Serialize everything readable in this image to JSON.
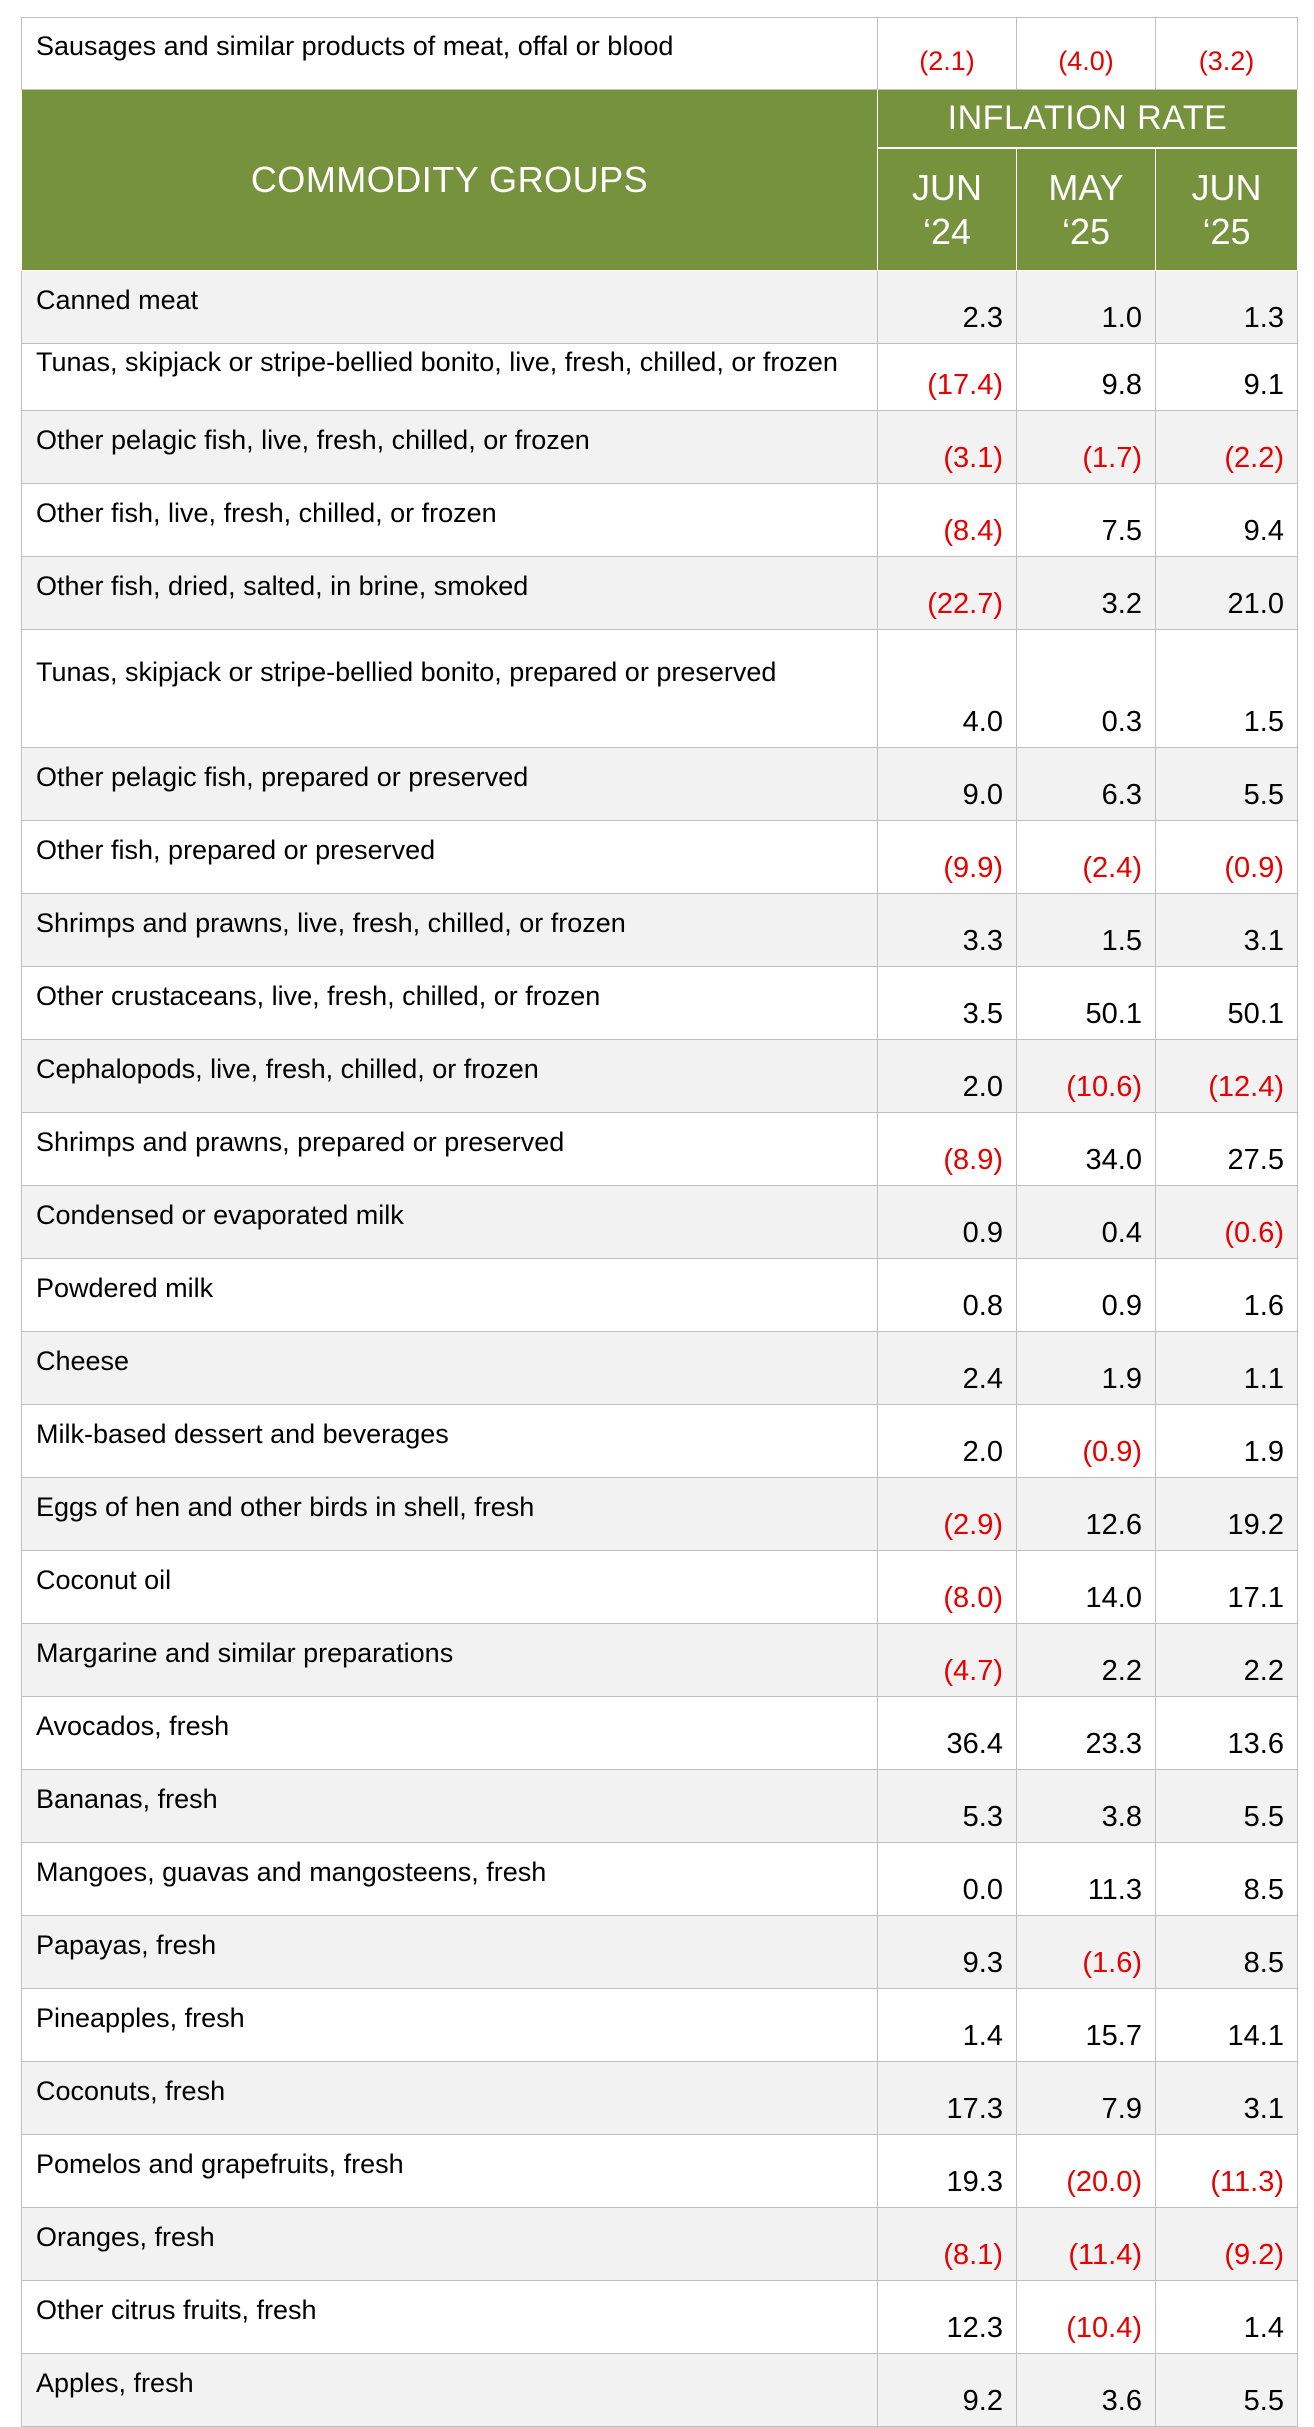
{
  "first_row": {
    "label": "Sausages and similar products of meat, offal or blood",
    "jun24": "(2.1)",
    "may25": "(4.0)",
    "jun25": "(3.2)"
  },
  "header": {
    "commodity_groups": "COMMODITY GROUPS",
    "inflation_rate": "INFLATION RATE",
    "periods": [
      {
        "line1": "JUN",
        "line2": "‘24"
      },
      {
        "line1": "MAY",
        "line2": "‘25"
      },
      {
        "line1": "JUN",
        "line2": "‘25"
      }
    ]
  },
  "rows": [
    {
      "label": "Canned meat",
      "jun24": "2.3",
      "may25": "1.0",
      "jun25": "1.3"
    },
    {
      "label": "Tunas, skipjack or stripe-bellied bonito, live, fresh, chilled, or frozen",
      "jun24": "(17.4)",
      "may25": "9.8",
      "jun25": "9.1"
    },
    {
      "label": "Other pelagic fish, live, fresh, chilled, or frozen",
      "jun24": "(3.1)",
      "may25": "(1.7)",
      "jun25": "(2.2)"
    },
    {
      "label": "Other fish, live, fresh, chilled, or frozen",
      "jun24": "(8.4)",
      "may25": "7.5",
      "jun25": "9.4"
    },
    {
      "label": "Other fish, dried, salted, in brine, smoked",
      "jun24": "(22.7)",
      "may25": "3.2",
      "jun25": "21.0"
    },
    {
      "label": "Tunas, skipjack or stripe-bellied bonito, prepared or preserved",
      "jun24": "4.0",
      "may25": "0.3",
      "jun25": "1.5"
    },
    {
      "label": "Other pelagic fish, prepared or preserved",
      "jun24": "9.0",
      "may25": "6.3",
      "jun25": "5.5"
    },
    {
      "label": "Other fish, prepared or preserved",
      "jun24": "(9.9)",
      "may25": "(2.4)",
      "jun25": "(0.9)"
    },
    {
      "label": "Shrimps and prawns, live, fresh, chilled, or frozen",
      "jun24": "3.3",
      "may25": "1.5",
      "jun25": "3.1"
    },
    {
      "label": "Other crustaceans, live, fresh, chilled, or frozen",
      "jun24": "3.5",
      "may25": "50.1",
      "jun25": "50.1"
    },
    {
      "label": "Cephalopods, live, fresh, chilled, or frozen",
      "jun24": "2.0",
      "may25": "(10.6)",
      "jun25": "(12.4)"
    },
    {
      "label": "Shrimps and prawns, prepared or preserved",
      "jun24": "(8.9)",
      "may25": "34.0",
      "jun25": "27.5"
    },
    {
      "label": "Condensed or evaporated milk",
      "jun24": "0.9",
      "may25": "0.4",
      "jun25": "(0.6)"
    },
    {
      "label": "Powdered milk",
      "jun24": "0.8",
      "may25": "0.9",
      "jun25": "1.6"
    },
    {
      "label": "Cheese",
      "jun24": "2.4",
      "may25": "1.9",
      "jun25": "1.1"
    },
    {
      "label": "Milk-based dessert and beverages",
      "jun24": "2.0",
      "may25": "(0.9)",
      "jun25": "1.9"
    },
    {
      "label": "Eggs of hen and other birds in shell, fresh",
      "jun24": "(2.9)",
      "may25": "12.6",
      "jun25": "19.2"
    },
    {
      "label": "Coconut oil",
      "jun24": "(8.0)",
      "may25": "14.0",
      "jun25": "17.1"
    },
    {
      "label": "Margarine and similar preparations",
      "jun24": "(4.7)",
      "may25": "2.2",
      "jun25": "2.2"
    },
    {
      "label": "Avocados, fresh",
      "jun24": "36.4",
      "may25": "23.3",
      "jun25": "13.6"
    },
    {
      "label": "Bananas, fresh",
      "jun24": "5.3",
      "may25": "3.8",
      "jun25": "5.5"
    },
    {
      "label": "Mangoes, guavas and mangosteens, fresh",
      "jun24": "0.0",
      "may25": "11.3",
      "jun25": "8.5"
    },
    {
      "label": "Papayas, fresh",
      "jun24": "9.3",
      "may25": "(1.6)",
      "jun25": "8.5"
    },
    {
      "label": "Pineapples, fresh",
      "jun24": "1.4",
      "may25": "15.7",
      "jun25": "14.1"
    },
    {
      "label": "Coconuts, fresh",
      "jun24": "17.3",
      "may25": "7.9",
      "jun25": "3.1"
    },
    {
      "label": "Pomelos and grapefruits, fresh",
      "jun24": "19.3",
      "may25": "(20.0)",
      "jun25": "(11.3)"
    },
    {
      "label": "Oranges, fresh",
      "jun24": "(8.1)",
      "may25": "(11.4)",
      "jun25": "(9.2)"
    },
    {
      "label": "Other citrus fruits, fresh",
      "jun24": "12.3",
      "may25": "(10.4)",
      "jun25": "1.4"
    },
    {
      "label": "Apples, fresh",
      "jun24": "9.2",
      "may25": "3.6",
      "jun25": "5.5"
    }
  ],
  "colors": {
    "header_green": "#76923c",
    "negative_red": "#e60000",
    "stripe_gray": "#f2f2f2",
    "grid_gray": "#bfbfbf"
  }
}
